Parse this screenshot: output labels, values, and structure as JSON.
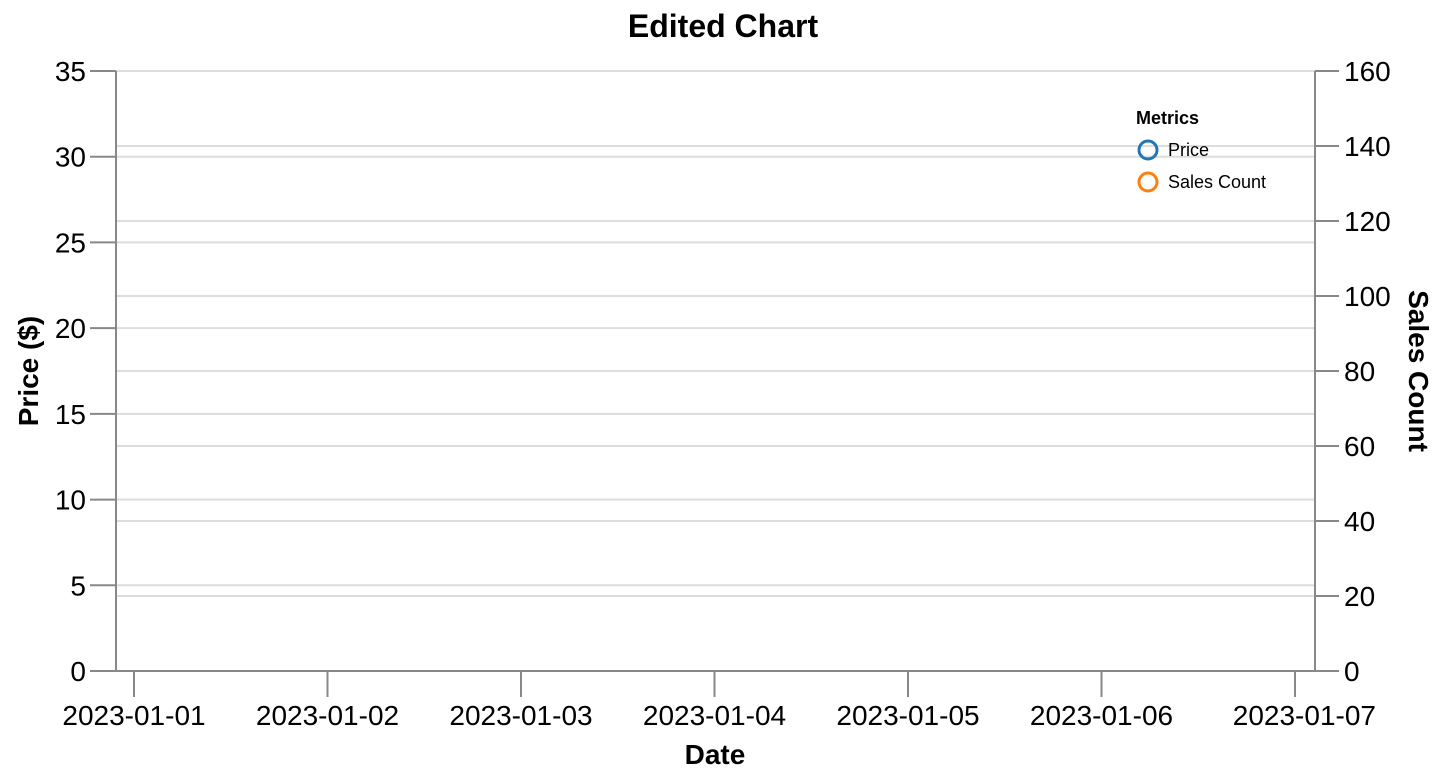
{
  "chart_data": {
    "type": "line",
    "title": "Edited Chart",
    "xlabel": "Date",
    "ylabel": "Price ($)",
    "y2label": "Sales Count",
    "x_ticks": [
      "2023-01-01",
      "2023-01-02",
      "2023-01-03",
      "2023-01-04",
      "2023-01-05",
      "2023-01-06",
      "2023-01-07"
    ],
    "ylim": [
      0,
      35
    ],
    "y_ticks": [
      0,
      5,
      10,
      15,
      20,
      25,
      30,
      35
    ],
    "y2lim": [
      0,
      160
    ],
    "y2_ticks": [
      0,
      20,
      40,
      60,
      80,
      100,
      120,
      140,
      160
    ],
    "grid": true,
    "legend": {
      "title": "Metrics",
      "placement": "top-right",
      "entries": [
        {
          "name": "Price",
          "color": "#1f77b4",
          "symbol": "circle"
        },
        {
          "name": "Sales Count",
          "color": "#ff7f0e",
          "symbol": "circle"
        }
      ]
    },
    "series": [
      {
        "name": "Price",
        "axis": "left",
        "values": []
      },
      {
        "name": "Sales Count",
        "axis": "right",
        "values": []
      }
    ]
  }
}
